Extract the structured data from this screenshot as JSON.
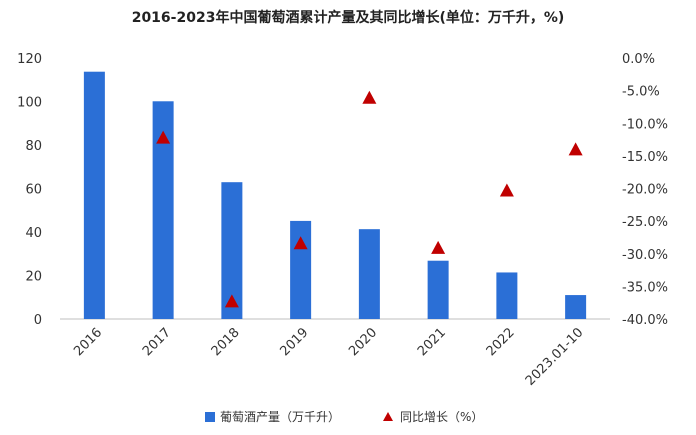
{
  "chart_data": {
    "type": "bar",
    "title": "2016-2023年中国葡萄酒累计产量及其同比增长(单位：万千升，%)",
    "categories": [
      "2016",
      "2017",
      "2018",
      "2019",
      "2020",
      "2021",
      "2022",
      "2023.01-10"
    ],
    "series": [
      {
        "name": "葡萄酒产量（万千升）",
        "type": "bar",
        "axis": "left",
        "color": "#2b6fd6",
        "values": [
          113.7,
          100.1,
          62.9,
          45.1,
          41.3,
          26.8,
          21.4,
          11.0
        ]
      },
      {
        "name": "同比增长（%）",
        "type": "scatter",
        "marker": "triangle",
        "axis": "right",
        "color": "#c00000",
        "values": [
          null,
          -12.2,
          -37.3,
          -28.4,
          -6.1,
          -29.1,
          -20.3,
          -14.0
        ]
      }
    ],
    "y_left": {
      "min": 0,
      "max": 120,
      "step": 20,
      "ticks": [
        "0",
        "20",
        "40",
        "60",
        "80",
        "100",
        "120"
      ]
    },
    "y_right": {
      "min": -40,
      "max": 0,
      "step": 5,
      "ticks": [
        "-40.0%",
        "-35.0%",
        "-30.0%",
        "-25.0%",
        "-20.0%",
        "-15.0%",
        "-10.0%",
        "-5.0%",
        "0.0%"
      ]
    },
    "xlabel": "",
    "ylabel": "",
    "grid": false,
    "legend_position": "bottom"
  }
}
